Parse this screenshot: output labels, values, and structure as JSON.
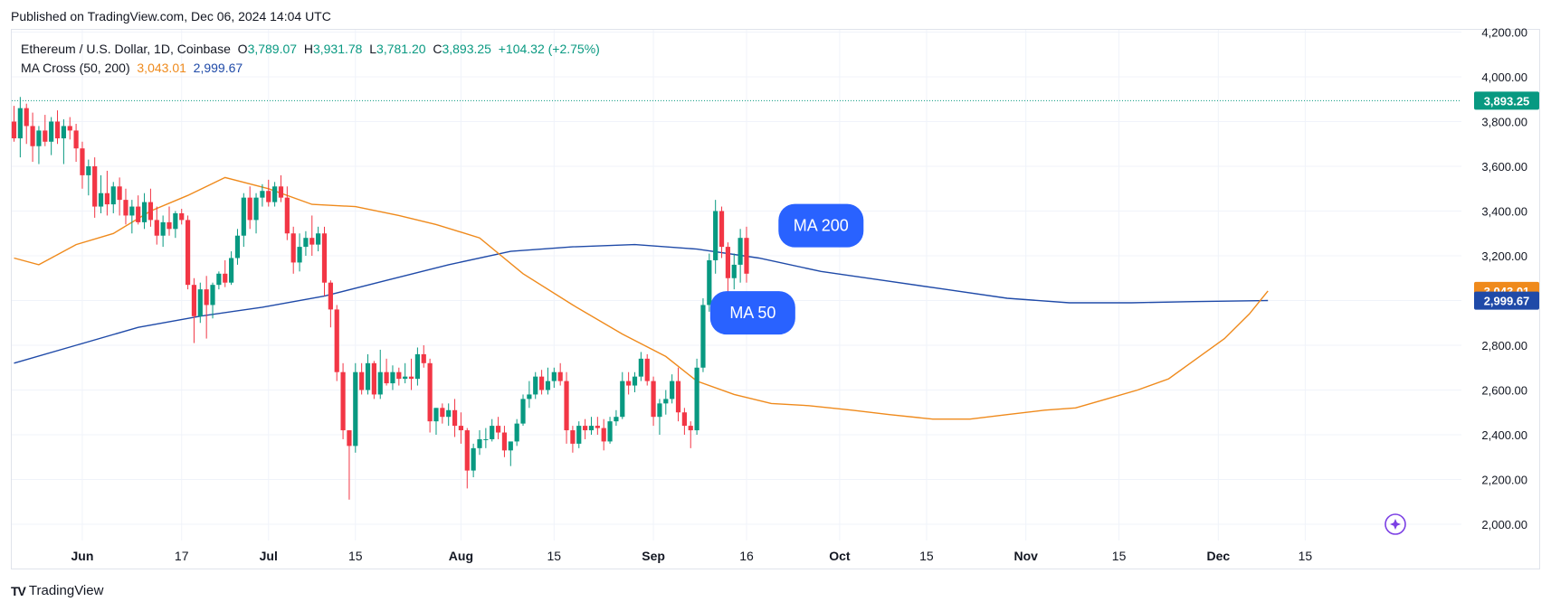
{
  "header": {
    "published": "Published on TradingView.com, Dec 06, 2024 14:04 UTC"
  },
  "legend": {
    "symbol": "Ethereum / U.S. Dollar, 1D, Coinbase",
    "o_label": "O",
    "o_value": "3,789.07",
    "h_label": "H",
    "h_value": "3,931.78",
    "l_label": "L",
    "l_value": "3,781.20",
    "c_label": "C",
    "c_value": "3,893.25",
    "change": "+104.32 (+2.75%)",
    "ma_cross": "MA Cross (50, 200)",
    "ma50_value": "3,043.01",
    "ma200_value": "2,999.67"
  },
  "footer": {
    "brand": "TradingView",
    "logo": "TV"
  },
  "colors": {
    "up": "#089981",
    "down": "#f23645",
    "ma50": "#ef8a1c",
    "ma200": "#1f4aa8",
    "badge": "#2962ff"
  },
  "chart_data": {
    "type": "candlestick",
    "title": "Ethereum / U.S. Dollar, 1D, Coinbase",
    "y_ticks": [
      "4,200.00",
      "4,000.00",
      "3,800.00",
      "3,600.00",
      "3,400.00",
      "3,200.00",
      "3,000.00",
      "2,800.00",
      "2,600.00",
      "2,400.00",
      "2,200.00",
      "2,000.00"
    ],
    "y_tick_values": [
      4200,
      4000,
      3800,
      3600,
      3400,
      3200,
      3000,
      2800,
      2600,
      2400,
      2200,
      2000
    ],
    "ylim": [
      1900,
      4200
    ],
    "x_labels": [
      "Jun",
      "17",
      "Jul",
      "15",
      "Aug",
      "15",
      "Sep",
      "16",
      "Oct",
      "15",
      "Nov",
      "15",
      "Dec",
      "15"
    ],
    "x_label_days": [
      11,
      27,
      41,
      55,
      72,
      87,
      103,
      118,
      133,
      147,
      163,
      178,
      194,
      208
    ],
    "price_markers": [
      {
        "name": "last-price",
        "value": 3893.25,
        "label": "3,893.25",
        "color": "#089981"
      },
      {
        "name": "ma50",
        "value": 3043.01,
        "label": "3,043.01",
        "color": "#ef8a1c"
      },
      {
        "name": "ma200",
        "value": 2999.67,
        "label": "2,999.67",
        "color": "#1f4aa8"
      }
    ],
    "annotations": [
      {
        "text": "MA 200",
        "day": 130,
        "value": 3335
      },
      {
        "text": "MA 50",
        "day": 119,
        "value": 2945
      }
    ],
    "ma50_points": [
      [
        0,
        3190
      ],
      [
        4,
        3160
      ],
      [
        10,
        3250
      ],
      [
        16,
        3300
      ],
      [
        22,
        3400
      ],
      [
        28,
        3470
      ],
      [
        34,
        3550
      ],
      [
        41,
        3500
      ],
      [
        48,
        3430
      ],
      [
        55,
        3420
      ],
      [
        62,
        3380
      ],
      [
        68,
        3340
      ],
      [
        75,
        3280
      ],
      [
        82,
        3120
      ],
      [
        90,
        2980
      ],
      [
        98,
        2850
      ],
      [
        105,
        2750
      ],
      [
        110,
        2640
      ],
      [
        116,
        2580
      ],
      [
        122,
        2540
      ],
      [
        128,
        2530
      ],
      [
        135,
        2510
      ],
      [
        141,
        2490
      ],
      [
        148,
        2470
      ],
      [
        154,
        2470
      ],
      [
        160,
        2490
      ],
      [
        166,
        2510
      ],
      [
        171,
        2520
      ],
      [
        176,
        2560
      ],
      [
        181,
        2600
      ],
      [
        186,
        2650
      ],
      [
        190,
        2730
      ],
      [
        195,
        2830
      ],
      [
        199,
        2940
      ],
      [
        202,
        3043
      ]
    ],
    "ma200_points": [
      [
        0,
        2720
      ],
      [
        10,
        2800
      ],
      [
        20,
        2880
      ],
      [
        30,
        2930
      ],
      [
        40,
        2970
      ],
      [
        50,
        3020
      ],
      [
        60,
        3090
      ],
      [
        70,
        3160
      ],
      [
        80,
        3220
      ],
      [
        90,
        3240
      ],
      [
        100,
        3250
      ],
      [
        110,
        3230
      ],
      [
        120,
        3190
      ],
      [
        130,
        3130
      ],
      [
        140,
        3090
      ],
      [
        150,
        3050
      ],
      [
        160,
        3010
      ],
      [
        170,
        2990
      ],
      [
        180,
        2990
      ],
      [
        190,
        2995
      ],
      [
        202,
        3000
      ]
    ],
    "candles": [
      [
        3800,
        3870,
        3710,
        3725
      ],
      [
        3725,
        3910,
        3640,
        3860
      ],
      [
        3860,
        3880,
        3700,
        3780
      ],
      [
        3780,
        3840,
        3620,
        3690
      ],
      [
        3690,
        3780,
        3610,
        3760
      ],
      [
        3760,
        3830,
        3690,
        3710
      ],
      [
        3710,
        3820,
        3650,
        3800
      ],
      [
        3800,
        3850,
        3700,
        3725
      ],
      [
        3725,
        3810,
        3610,
        3780
      ],
      [
        3780,
        3820,
        3720,
        3760
      ],
      [
        3760,
        3790,
        3620,
        3680
      ],
      [
        3680,
        3710,
        3500,
        3560
      ],
      [
        3560,
        3630,
        3470,
        3600
      ],
      [
        3600,
        3640,
        3370,
        3420
      ],
      [
        3420,
        3560,
        3390,
        3480
      ],
      [
        3480,
        3580,
        3380,
        3430
      ],
      [
        3430,
        3530,
        3390,
        3510
      ],
      [
        3510,
        3550,
        3380,
        3450
      ],
      [
        3450,
        3500,
        3340,
        3380
      ],
      [
        3380,
        3450,
        3300,
        3420
      ],
      [
        3420,
        3470,
        3340,
        3350
      ],
      [
        3350,
        3480,
        3320,
        3440
      ],
      [
        3440,
        3500,
        3330,
        3360
      ],
      [
        3360,
        3420,
        3250,
        3290
      ],
      [
        3290,
        3380,
        3240,
        3350
      ],
      [
        3350,
        3420,
        3290,
        3320
      ],
      [
        3320,
        3400,
        3280,
        3390
      ],
      [
        3390,
        3410,
        3340,
        3360
      ],
      [
        3360,
        3380,
        3050,
        3070
      ],
      [
        3070,
        3100,
        2810,
        2930
      ],
      [
        2930,
        3080,
        2900,
        3050
      ],
      [
        3050,
        3110,
        2830,
        2980
      ],
      [
        2980,
        3080,
        2920,
        3070
      ],
      [
        3070,
        3130,
        3050,
        3120
      ],
      [
        3120,
        3180,
        3060,
        3080
      ],
      [
        3080,
        3220,
        3070,
        3190
      ],
      [
        3190,
        3320,
        3160,
        3290
      ],
      [
        3290,
        3480,
        3240,
        3460
      ],
      [
        3460,
        3510,
        3320,
        3360
      ],
      [
        3360,
        3480,
        3300,
        3460
      ],
      [
        3460,
        3520,
        3420,
        3490
      ],
      [
        3490,
        3540,
        3420,
        3440
      ],
      [
        3440,
        3530,
        3420,
        3510
      ],
      [
        3510,
        3560,
        3440,
        3460
      ],
      [
        3460,
        3510,
        3270,
        3300
      ],
      [
        3300,
        3330,
        3120,
        3170
      ],
      [
        3170,
        3300,
        3130,
        3240
      ],
      [
        3240,
        3310,
        3200,
        3280
      ],
      [
        3280,
        3380,
        3200,
        3250
      ],
      [
        3250,
        3330,
        3220,
        3300
      ],
      [
        3300,
        3330,
        3020,
        3080
      ],
      [
        3080,
        3090,
        2880,
        2960
      ],
      [
        2960,
        2980,
        2640,
        2680
      ],
      [
        2680,
        2720,
        2380,
        2420
      ],
      [
        2420,
        2420,
        2110,
        2350
      ],
      [
        2350,
        2720,
        2320,
        2680
      ],
      [
        2680,
        2720,
        2580,
        2600
      ],
      [
        2600,
        2760,
        2580,
        2720
      ],
      [
        2720,
        2730,
        2560,
        2580
      ],
      [
        2580,
        2780,
        2560,
        2680
      ],
      [
        2680,
        2740,
        2620,
        2630
      ],
      [
        2630,
        2710,
        2600,
        2680
      ],
      [
        2680,
        2700,
        2620,
        2650
      ],
      [
        2650,
        2720,
        2630,
        2660
      ],
      [
        2660,
        2740,
        2600,
        2650
      ],
      [
        2650,
        2790,
        2620,
        2760
      ],
      [
        2760,
        2800,
        2700,
        2720
      ],
      [
        2720,
        2740,
        2410,
        2460
      ],
      [
        2460,
        2520,
        2400,
        2520
      ],
      [
        2520,
        2540,
        2450,
        2480
      ],
      [
        2480,
        2540,
        2440,
        2510
      ],
      [
        2510,
        2560,
        2390,
        2440
      ],
      [
        2440,
        2500,
        2360,
        2420
      ],
      [
        2420,
        2430,
        2160,
        2240
      ],
      [
        2240,
        2360,
        2210,
        2340
      ],
      [
        2340,
        2420,
        2310,
        2380
      ],
      [
        2380,
        2430,
        2340,
        2380
      ],
      [
        2380,
        2470,
        2370,
        2440
      ],
      [
        2440,
        2480,
        2380,
        2410
      ],
      [
        2410,
        2440,
        2300,
        2330
      ],
      [
        2330,
        2360,
        2260,
        2370
      ],
      [
        2370,
        2470,
        2350,
        2450
      ],
      [
        2450,
        2580,
        2440,
        2560
      ],
      [
        2560,
        2640,
        2520,
        2580
      ],
      [
        2580,
        2680,
        2560,
        2660
      ],
      [
        2660,
        2690,
        2580,
        2600
      ],
      [
        2600,
        2700,
        2580,
        2640
      ],
      [
        2640,
        2700,
        2610,
        2680
      ],
      [
        2680,
        2720,
        2620,
        2640
      ],
      [
        2640,
        2680,
        2360,
        2420
      ],
      [
        2420,
        2440,
        2320,
        2360
      ],
      [
        2360,
        2460,
        2340,
        2440
      ],
      [
        2440,
        2470,
        2380,
        2420
      ],
      [
        2420,
        2480,
        2400,
        2440
      ],
      [
        2440,
        2480,
        2400,
        2430
      ],
      [
        2430,
        2470,
        2330,
        2370
      ],
      [
        2370,
        2480,
        2360,
        2460
      ],
      [
        2460,
        2510,
        2440,
        2480
      ],
      [
        2480,
        2680,
        2470,
        2640
      ],
      [
        2640,
        2680,
        2580,
        2620
      ],
      [
        2620,
        2680,
        2590,
        2660
      ],
      [
        2660,
        2770,
        2640,
        2740
      ],
      [
        2740,
        2760,
        2620,
        2640
      ],
      [
        2640,
        2660,
        2440,
        2480
      ],
      [
        2480,
        2560,
        2400,
        2540
      ],
      [
        2540,
        2600,
        2490,
        2560
      ],
      [
        2560,
        2670,
        2540,
        2640
      ],
      [
        2640,
        2700,
        2460,
        2500
      ],
      [
        2500,
        2520,
        2400,
        2440
      ],
      [
        2440,
        2460,
        2340,
        2420
      ],
      [
        2420,
        2740,
        2400,
        2700
      ],
      [
        2700,
        3010,
        2680,
        2980
      ],
      [
        2980,
        3210,
        2950,
        3180
      ],
      [
        3180,
        3450,
        3120,
        3400
      ],
      [
        3400,
        3420,
        3190,
        3240
      ],
      [
        3240,
        3260,
        3020,
        3100
      ],
      [
        3100,
        3210,
        3050,
        3160
      ],
      [
        3160,
        3320,
        3080,
        3280
      ],
      [
        3280,
        3330,
        3080,
        3120
      ]
    ]
  }
}
